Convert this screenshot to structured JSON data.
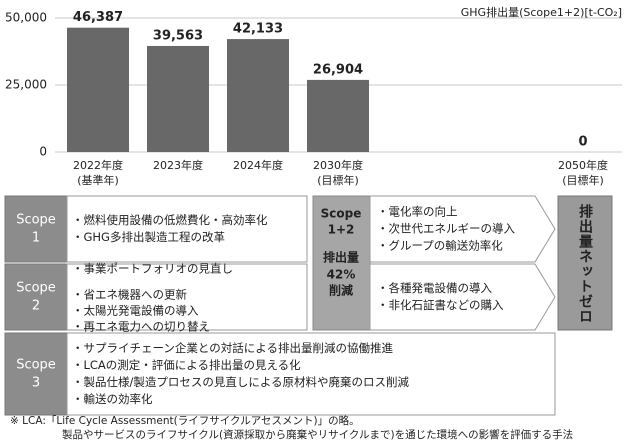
{
  "chart_data": {
    "type": "bar",
    "axis_label": "GHG排出量(Scope1+2)[t-CO₂]",
    "categories": [
      "2022年度",
      "2023年度",
      "2024年度",
      "2030年度",
      "2050年度"
    ],
    "category_notes": [
      "(基準年)",
      null,
      null,
      "(目標年)",
      "(目標年)"
    ],
    "values": [
      46387,
      39563,
      42133,
      26904,
      0
    ],
    "value_labels": [
      "46,387",
      "39,563",
      "42,133",
      "26,904",
      "0"
    ],
    "color": "#686868",
    "ylim": [
      0,
      50000
    ],
    "yticks": [
      0,
      {
        "value": 25000,
        "label": "25,000"
      },
      {
        "value": 50000,
        "label": "50,000"
      }
    ],
    "grid": true
  },
  "scopes": [
    {
      "name": "Scope",
      "number": "1",
      "items": [
        "・燃料使用設備の低燃費化・高効率化",
        "・GHG多排出製造工程の改革"
      ]
    },
    {
      "name": "Scope",
      "number": "2",
      "items": [
        "・事業ポートフォリオの見直し",
        "・省エネ機器への更新",
        "・太陽光発電設備の導入",
        "・再エネ電力への切り替え"
      ]
    },
    {
      "name": "Scope",
      "number": "3",
      "items": [
        "・サプライチェーン企業との対話による排出量削減の協働推進",
        "・LCAの測定・評価による排出量の見える化",
        "・製品仕様/製造プロセスの見直しによる原材料や廃棄のロス削減",
        "・輸送の効率化"
      ]
    }
  ],
  "target": [
    "Scope",
    "1+2",
    "排出量",
    "42%",
    "削減"
  ],
  "actions": [
    [
      "・電化率の向上",
      "・次世代エネルギーの導入",
      "・グループの輸送効率化"
    ],
    [
      "・各種発電設備の導入",
      "・非化石証書などの購入"
    ]
  ],
  "goal": "排出量ネットゼロ",
  "footnote": [
    "※ LCA:「Life Cycle Assessment(ライフサイクルアセスメント)」の略。",
    "製品やサービスのライフサイクル(資源採取から廃棄やリサイクルまで)を通じた環境への影響を評価する手法"
  ]
}
